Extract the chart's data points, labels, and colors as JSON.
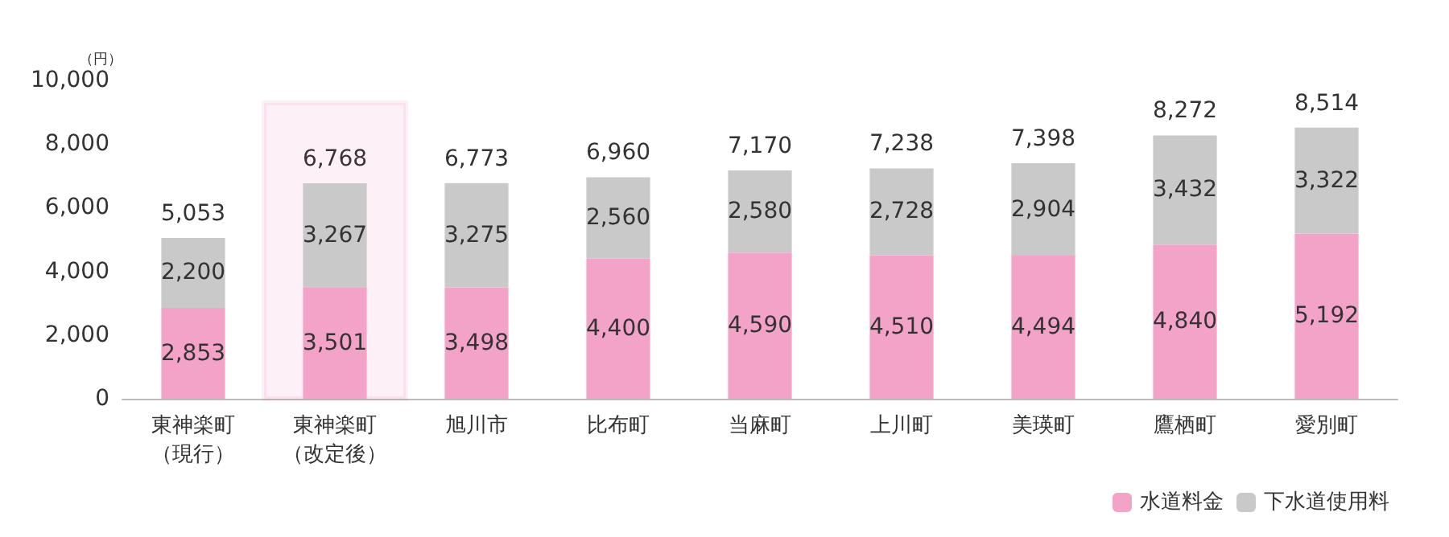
{
  "chart_data": {
    "type": "bar",
    "stacked": true,
    "ylabel": "（円）",
    "categories": [
      "東神楽町（現行）",
      "東神楽町（改定後）",
      "旭川市",
      "比布町",
      "当麻町",
      "上川町",
      "美瑛町",
      "鷹栖町",
      "愛別町"
    ],
    "series": [
      {
        "name": "水道料金",
        "color": "#f4a3c8",
        "values": [
          2853,
          3501,
          3498,
          4400,
          4590,
          4510,
          4494,
          4840,
          5192
        ],
        "value_labels": [
          "2,853",
          "3,501",
          "3,498",
          "4,400",
          "4,590",
          "4,510",
          "4,494",
          "4,840",
          "5,192"
        ]
      },
      {
        "name": "下水道使用料",
        "color": "#c9c9c9",
        "values": [
          2200,
          3267,
          3275,
          2560,
          2580,
          2728,
          2904,
          3432,
          3322
        ],
        "value_labels": [
          "2,200",
          "3,267",
          "3,275",
          "2,560",
          "2,580",
          "2,728",
          "2,904",
          "3,432",
          "3,322"
        ]
      }
    ],
    "totals": [
      "5,053",
      "6,768",
      "6,773",
      "6,960",
      "7,170",
      "7,238",
      "7,398",
      "8,272",
      "8,514"
    ],
    "ylim": [
      0,
      10000
    ],
    "yticks": [
      0,
      {
        "value": 2000,
        "label": "2,000"
      },
      {
        "value": 4000,
        "label": "4,000"
      },
      {
        "value": 6000,
        "label": "6,000"
      },
      {
        "value": 8000,
        "label": "8,000"
      },
      {
        "value": 10000,
        "label": "10,000"
      }
    ],
    "grid": false,
    "legend": "bottom right",
    "bands": [
      {
        "axis": "x",
        "from": "東神楽町（改定後）",
        "to": "東神楽町（改定後）",
        "color": "#e4007f"
      }
    ]
  }
}
